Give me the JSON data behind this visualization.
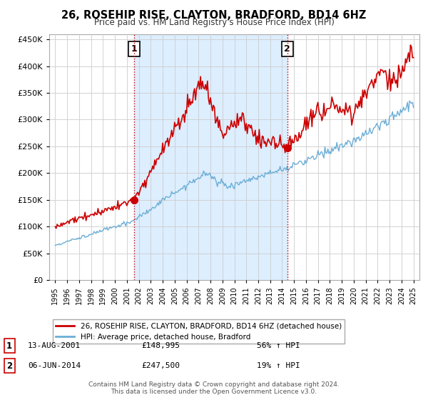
{
  "title": "26, ROSEHIP RISE, CLAYTON, BRADFORD, BD14 6HZ",
  "subtitle": "Price paid vs. HM Land Registry's House Price Index (HPI)",
  "legend_line1": "26, ROSEHIP RISE, CLAYTON, BRADFORD, BD14 6HZ (detached house)",
  "legend_line2": "HPI: Average price, detached house, Bradford",
  "annotation1_label": "1",
  "annotation1_date": "13-AUG-2001",
  "annotation1_price": "£148,995",
  "annotation1_hpi": "56% ↑ HPI",
  "annotation2_label": "2",
  "annotation2_date": "06-JUN-2014",
  "annotation2_price": "£247,500",
  "annotation2_hpi": "19% ↑ HPI",
  "footer": "Contains HM Land Registry data © Crown copyright and database right 2024.\nThis data is licensed under the Open Government Licence v3.0.",
  "red_color": "#cc0000",
  "blue_color": "#6baed6",
  "shade_color": "#ddeeff",
  "sale1_x": 2001.617,
  "sale1_y": 148995,
  "sale2_x": 2014.43,
  "sale2_y": 247500,
  "ylim": [
    0,
    460000
  ],
  "xlim": [
    1994.5,
    2025.5
  ],
  "yticks": [
    0,
    50000,
    100000,
    150000,
    200000,
    250000,
    300000,
    350000,
    400000,
    450000
  ],
  "xticks": [
    1995,
    1996,
    1997,
    1998,
    1999,
    2000,
    2001,
    2002,
    2003,
    2004,
    2005,
    2006,
    2007,
    2008,
    2009,
    2010,
    2011,
    2012,
    2013,
    2014,
    2015,
    2016,
    2017,
    2018,
    2019,
    2020,
    2021,
    2022,
    2023,
    2024,
    2025
  ]
}
